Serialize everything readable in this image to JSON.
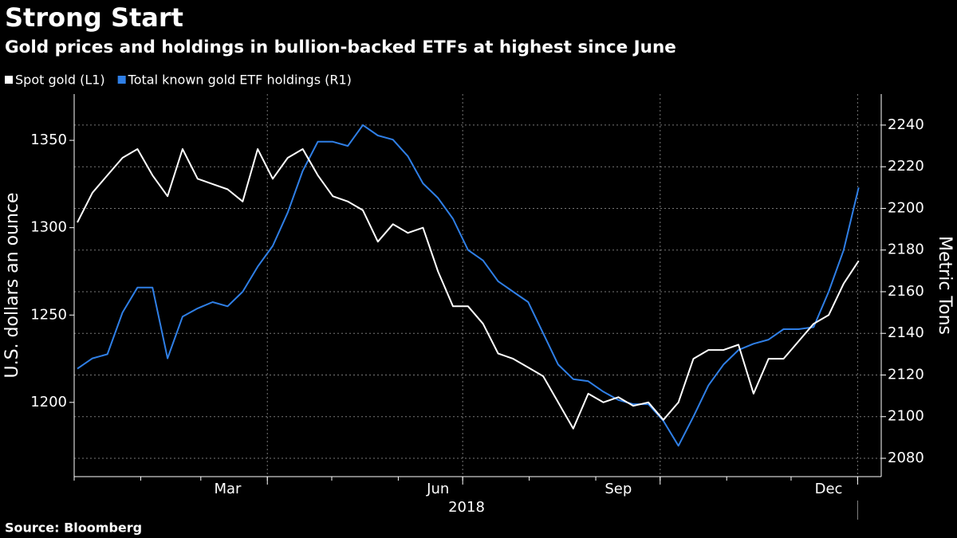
{
  "chart_data": {
    "type": "line",
    "title": "Strong Start",
    "subtitle": "Gold prices and holdings in bullion-backed ETFs at highest since June",
    "source": "Source: Bloomberg",
    "x_label": "2018",
    "y_label": "U.S. dollars an ounce",
    "y2_label": "Metric Tons",
    "categories": [
      null,
      null,
      null,
      null,
      null,
      null,
      null,
      null,
      null,
      null,
      "Mar",
      null,
      null,
      null,
      null,
      null,
      null,
      null,
      null,
      null,
      null,
      null,
      null,
      null,
      "Jun",
      null,
      null,
      null,
      null,
      null,
      null,
      null,
      null,
      null,
      null,
      null,
      "Sep",
      null,
      null,
      null,
      null,
      null,
      null,
      null,
      null,
      null,
      null,
      null,
      null,
      null,
      "Dec",
      null,
      null
    ],
    "series": [
      {
        "name": "Spot gold (L1)",
        "color": "#ffffff",
        "values": [
          1303,
          1320,
          1330,
          1340,
          1345,
          1330,
          1318,
          1345,
          1328,
          1325,
          1322,
          1315,
          1345,
          1328,
          1340,
          1345,
          1330,
          1318,
          1315,
          1310,
          1292,
          1302,
          1297,
          1300,
          1275,
          1255,
          1255,
          1245,
          1228,
          1225,
          1220,
          1215,
          1200,
          1185,
          1205,
          1200,
          1203,
          1198,
          1200,
          1190,
          1200,
          1225,
          1230,
          1230,
          1233,
          1205,
          1225,
          1225,
          1235,
          1245,
          1250,
          1268,
          1281
        ]
      },
      {
        "name": "Total known gold ETF holdings (R1)",
        "color": "#2f7fe6",
        "axis": "y2",
        "values": [
          2123,
          2128,
          2130,
          2150,
          2162,
          2162,
          2128,
          2148,
          2152,
          2155,
          2153,
          2160,
          2172,
          2182,
          2198,
          2218,
          2232,
          2232,
          2230,
          2240,
          2235,
          2233,
          2225,
          2212,
          2205,
          2195,
          2180,
          2175,
          2165,
          2160,
          2155,
          2140,
          2125,
          2118,
          2117,
          2112,
          2108,
          2106,
          2106,
          2098,
          2086,
          2100,
          2115,
          2125,
          2132,
          2135,
          2137,
          2142,
          2142,
          2143,
          2160,
          2180,
          2210
        ]
      }
    ],
    "ylim": [
      1157.5,
      1376.5
    ],
    "yticks": [
      1200,
      1250,
      1300,
      1350
    ],
    "y2lim": [
      2071.2,
      2254.9
    ],
    "y2ticks": [
      2080,
      2100,
      2120,
      2140,
      2160,
      2180,
      2200,
      2220,
      2240
    ],
    "grid": true
  }
}
